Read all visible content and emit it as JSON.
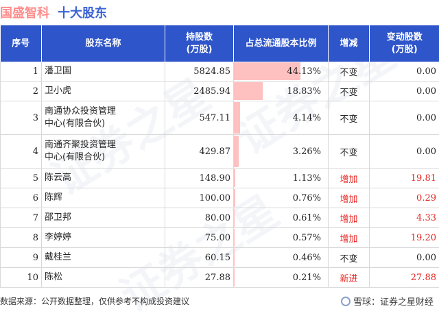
{
  "header": {
    "company": "国盛智科",
    "subtitle": "十大股东"
  },
  "columns": {
    "rank": "序号",
    "name": "股东名称",
    "shares_line1": "持股数",
    "shares_line2": "(万股)",
    "ratio": "占总流通股本比例",
    "change": "增减",
    "delta_line1": "变动股数",
    "delta_line2": "(万股)"
  },
  "rows": [
    {
      "rank": "1",
      "name_line1": "潘卫国",
      "name_line2": "",
      "shares": "5824.85",
      "ratio": "44.13%",
      "ratio_value": 44.13,
      "change": "不变",
      "change_type": "same",
      "delta": "0.00"
    },
    {
      "rank": "2",
      "name_line1": "卫小虎",
      "name_line2": "",
      "shares": "2485.94",
      "ratio": "18.83%",
      "ratio_value": 18.83,
      "change": "不变",
      "change_type": "same",
      "delta": "0.00"
    },
    {
      "rank": "3",
      "name_line1": "南通协众投资管理",
      "name_line2": "中心(有限合伙)",
      "shares": "547.11",
      "ratio": "4.14%",
      "ratio_value": 4.14,
      "change": "不变",
      "change_type": "same",
      "delta": "0.00"
    },
    {
      "rank": "4",
      "name_line1": "南通齐聚投资管理",
      "name_line2": "中心(有限合伙)",
      "shares": "429.87",
      "ratio": "3.26%",
      "ratio_value": 3.26,
      "change": "不变",
      "change_type": "same",
      "delta": "0.00"
    },
    {
      "rank": "5",
      "name_line1": "陈云高",
      "name_line2": "",
      "shares": "148.90",
      "ratio": "1.13%",
      "ratio_value": 1.13,
      "change": "增加",
      "change_type": "up",
      "delta": "19.81"
    },
    {
      "rank": "6",
      "name_line1": "陈辉",
      "name_line2": "",
      "shares": "100.00",
      "ratio": "0.76%",
      "ratio_value": 0.76,
      "change": "增加",
      "change_type": "up",
      "delta": "0.29"
    },
    {
      "rank": "7",
      "name_line1": "邵卫邦",
      "name_line2": "",
      "shares": "80.00",
      "ratio": "0.61%",
      "ratio_value": 0.61,
      "change": "增加",
      "change_type": "up",
      "delta": "4.33"
    },
    {
      "rank": "8",
      "name_line1": "李婷婷",
      "name_line2": "",
      "shares": "75.00",
      "ratio": "0.57%",
      "ratio_value": 0.57,
      "change": "增加",
      "change_type": "up",
      "delta": "19.20"
    },
    {
      "rank": "9",
      "name_line1": "戴桂兰",
      "name_line2": "",
      "shares": "60.15",
      "ratio": "0.46%",
      "ratio_value": 0.46,
      "change": "不变",
      "change_type": "same",
      "delta": "0.00"
    },
    {
      "rank": "10",
      "name_line1": "陈松",
      "name_line2": "",
      "shares": "27.88",
      "ratio": "0.21%",
      "ratio_value": 0.21,
      "change": "新进",
      "change_type": "up",
      "delta": "27.88"
    }
  ],
  "footer": {
    "source": "数据来源：公开数据整理，仅供参考不构成投资建议",
    "brand": "雪球：证券之星财经"
  },
  "watermark": {
    "text": "证券之星"
  },
  "colors": {
    "header_bg": "#2e55c9",
    "bar": "#ffc0c0",
    "increase": "#e8231f"
  }
}
